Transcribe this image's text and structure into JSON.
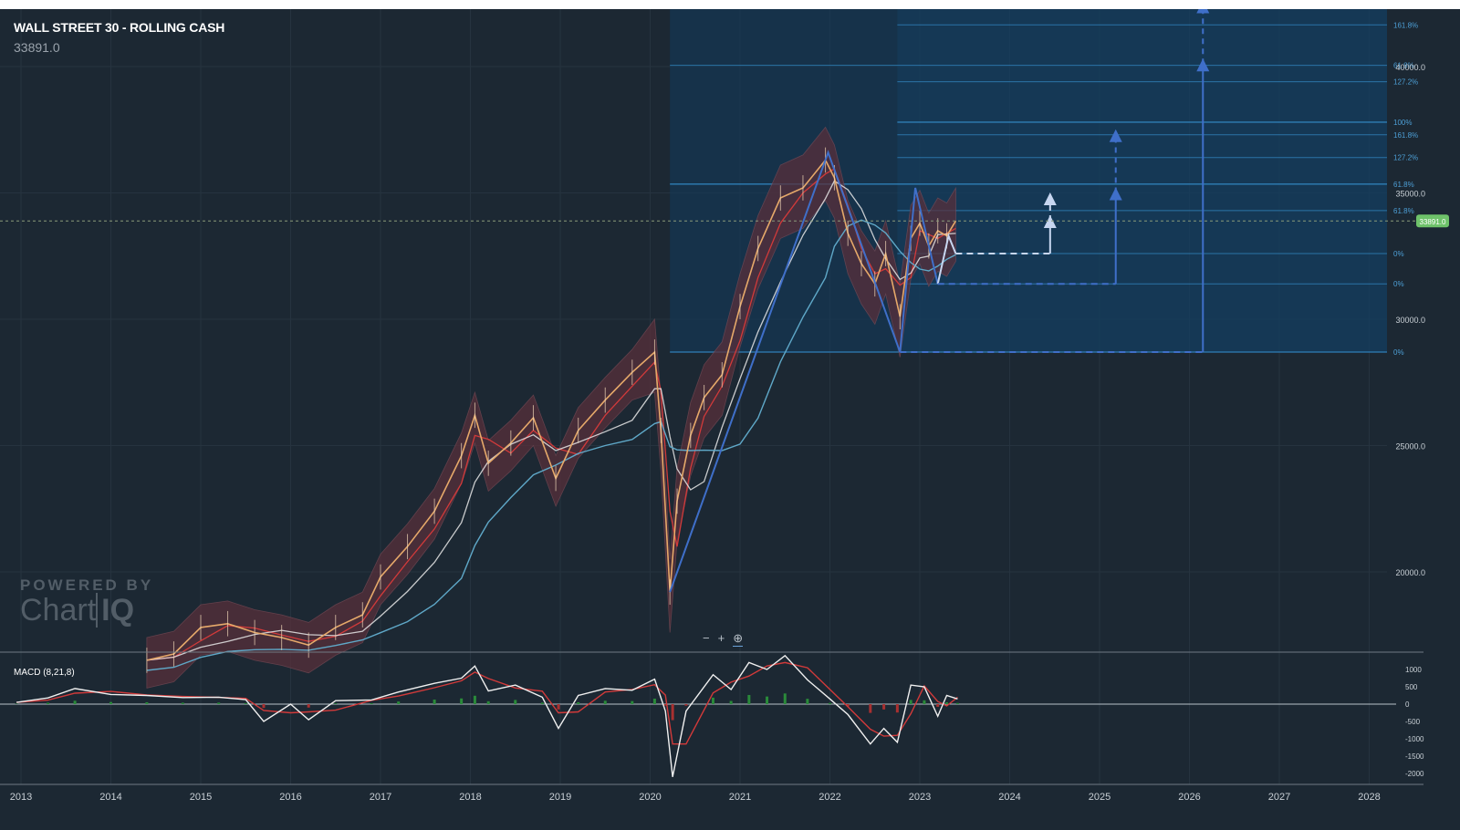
{
  "header": {
    "title": "WALL STREET 30 - ROLLING CASH",
    "price": "33891.0"
  },
  "watermark": {
    "top": "POWERED BY",
    "brand_a": "Chart",
    "brand_b": "IQ"
  },
  "zoom": {
    "minus": "−",
    "plus": "+",
    "reset": "⊕"
  },
  "macd": {
    "label": "MACD (8,21,8)"
  },
  "colors": {
    "background": "#1c2833",
    "candle": "#e6a96a",
    "band": "#5a2f3a",
    "ma_red": "#d23a3a",
    "ma_white": "#e8e8e8",
    "ma_blue": "#5fa8c8",
    "drawing_blue": "#3f6fc9",
    "drawing_light": "#c7d6f0",
    "fib_line": "#2f7fb6",
    "price_tag": "#6ec26a"
  },
  "chart_data": [
    {
      "type": "line",
      "title": "WALL STREET 30 - ROLLING CASH",
      "y_axis_position": "right",
      "y_ticks": [
        "40000.0",
        "35000.0",
        "30000.0",
        "25000.0",
        "20000.0"
      ],
      "ylim": [
        16500,
        42500
      ],
      "x_ticks": [
        "2013",
        "2014",
        "2015",
        "2016",
        "2017",
        "2018",
        "2019",
        "2020",
        "2021",
        "2022",
        "2023",
        "2024",
        "2025",
        "2026",
        "2027",
        "2028"
      ],
      "current_price": 33891.0,
      "current_price_label": "33891.0",
      "series": [
        {
          "x": [
            2014.4,
            2014.7,
            2015.0,
            2015.3,
            2015.6,
            2015.9,
            2016.2,
            2016.5,
            2016.8,
            2017.0,
            2017.3,
            2017.6,
            2017.9,
            2018.05,
            2018.2,
            2018.45,
            2018.7,
            2018.95,
            2019.2,
            2019.5,
            2019.8,
            2020.05,
            2020.12,
            2020.22,
            2020.3,
            2020.45,
            2020.6,
            2020.8,
            2021.0,
            2021.2,
            2021.45,
            2021.7,
            2021.95,
            2022.05,
            2022.2,
            2022.35,
            2022.5,
            2022.62,
            2022.78,
            2022.9,
            2023.0,
            2023.1,
            2023.2,
            2023.3,
            2023.4
          ],
          "values": [
            16500,
            16750,
            17800,
            17950,
            17600,
            17400,
            17100,
            17800,
            18300,
            19800,
            21000,
            22400,
            24600,
            26200,
            24300,
            25100,
            26100,
            23700,
            25600,
            26800,
            27900,
            28700,
            25600,
            19200,
            22800,
            25400,
            26900,
            27800,
            30500,
            32800,
            34800,
            35200,
            36300,
            35600,
            33400,
            32200,
            31400,
            32600,
            30100,
            33200,
            33800,
            32900,
            33500,
            33300,
            33891
          ]
        }
      ],
      "fib_levels_right": [
        "161.8%",
        "61.8%",
        "127.2%",
        "100%",
        "161.8%",
        "127.2%",
        "61.8%",
        "61.8%",
        "0%",
        "0%",
        "0%"
      ]
    },
    {
      "type": "line",
      "title": "MACD (8,21,8)",
      "y_ticks": [
        "1000",
        "500",
        "0",
        "-500",
        "-1000",
        "-1500",
        "-2000"
      ],
      "ylim": [
        -2400,
        1400
      ],
      "x": [
        2012.95,
        2013.3,
        2013.6,
        2014.0,
        2014.4,
        2014.8,
        2015.2,
        2015.5,
        2015.7,
        2016.0,
        2016.2,
        2016.5,
        2016.9,
        2017.2,
        2017.6,
        2017.9,
        2018.05,
        2018.2,
        2018.5,
        2018.8,
        2018.98,
        2019.2,
        2019.5,
        2019.8,
        2020.05,
        2020.17,
        2020.25,
        2020.4,
        2020.7,
        2020.9,
        2021.1,
        2021.3,
        2021.5,
        2021.75,
        2022.0,
        2022.2,
        2022.45,
        2022.6,
        2022.75,
        2022.9,
        2023.05,
        2023.2,
        2023.3,
        2023.42
      ],
      "values": [
        50,
        180,
        450,
        280,
        250,
        190,
        200,
        130,
        -500,
        0,
        -450,
        100,
        120,
        350,
        600,
        750,
        1100,
        380,
        550,
        200,
        -700,
        250,
        450,
        400,
        720,
        -200,
        -2100,
        -200,
        850,
        420,
        1200,
        1000,
        1400,
        700,
        150,
        -300,
        -1150,
        -700,
        -1100,
        550,
        500,
        -350,
        250,
        150
      ]
    }
  ]
}
